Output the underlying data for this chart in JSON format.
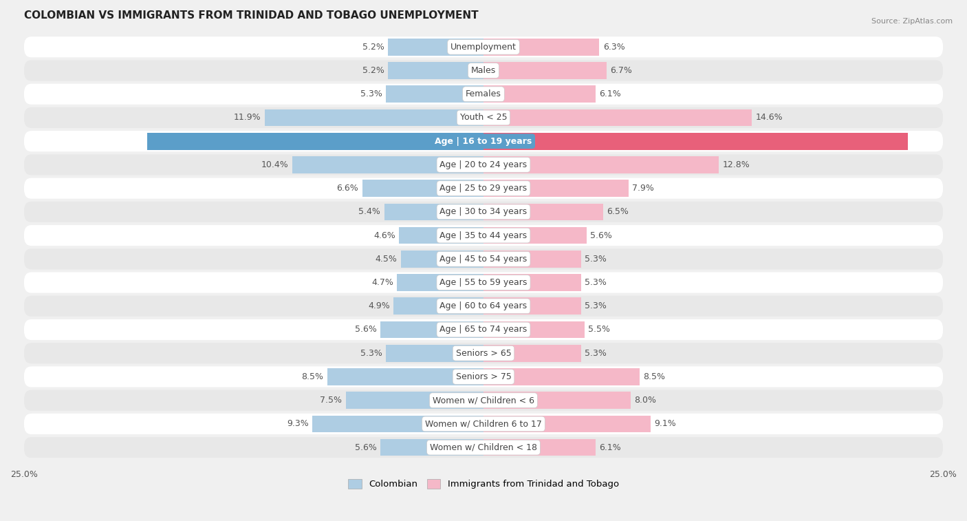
{
  "title": "COLOMBIAN VS IMMIGRANTS FROM TRINIDAD AND TOBAGO UNEMPLOYMENT",
  "source": "Source: ZipAtlas.com",
  "categories": [
    "Unemployment",
    "Males",
    "Females",
    "Youth < 25",
    "Age | 16 to 19 years",
    "Age | 20 to 24 years",
    "Age | 25 to 29 years",
    "Age | 30 to 34 years",
    "Age | 35 to 44 years",
    "Age | 45 to 54 years",
    "Age | 55 to 59 years",
    "Age | 60 to 64 years",
    "Age | 65 to 74 years",
    "Seniors > 65",
    "Seniors > 75",
    "Women w/ Children < 6",
    "Women w/ Children 6 to 17",
    "Women w/ Children < 18"
  ],
  "colombian": [
    5.2,
    5.2,
    5.3,
    11.9,
    18.3,
    10.4,
    6.6,
    5.4,
    4.6,
    4.5,
    4.7,
    4.9,
    5.6,
    5.3,
    8.5,
    7.5,
    9.3,
    5.6
  ],
  "trinidad": [
    6.3,
    6.7,
    6.1,
    14.6,
    23.1,
    12.8,
    7.9,
    6.5,
    5.6,
    5.3,
    5.3,
    5.3,
    5.5,
    5.3,
    8.5,
    8.0,
    9.1,
    6.1
  ],
  "colombian_color": "#aecde3",
  "trinidad_color": "#f5b8c8",
  "highlight_colombian_color": "#5b9ec9",
  "highlight_trinidad_color": "#e8607a",
  "highlight_row": 4,
  "bg_color": "#f0f0f0",
  "row_color_light": "#ffffff",
  "row_color_dark": "#e8e8e8",
  "xlim": 25.0,
  "bar_height": 0.72,
  "label_fontsize": 9.0,
  "value_fontsize": 9.0,
  "title_fontsize": 11,
  "legend_colombian": "Colombian",
  "legend_trinidad": "Immigrants from Trinidad and Tobago"
}
